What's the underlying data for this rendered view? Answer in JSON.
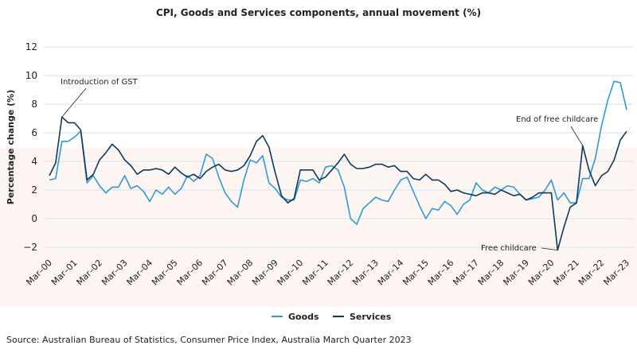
{
  "chart_data": {
    "type": "line",
    "title": "CPI, Goods and Services components, annual movement (%)",
    "xlabel": "",
    "ylabel": "Percentage change (%)",
    "ylim": [
      -2,
      12
    ],
    "yticks": [
      "−2",
      "0",
      "2",
      "4",
      "6",
      "8",
      "10",
      "12"
    ],
    "ytick_values": [
      -2,
      0,
      2,
      4,
      6,
      8,
      10,
      12
    ],
    "xticks": [
      "Mar–00",
      "Mar–01",
      "Mar–02",
      "Mar–03",
      "Mar–04",
      "Mar–05",
      "Mar–06",
      "Mar–07",
      "Mar–08",
      "Mar–09",
      "Mar–10",
      "Mar–11",
      "Mar–12",
      "Mar–13",
      "Mar–14",
      "Mar–15",
      "Mar–16",
      "Mar–17",
      "Mar–18",
      "Mar–19",
      "Mar–20",
      "Mar–21",
      "Mar–22",
      "Mar–23"
    ],
    "x_frequency": "quarterly, Mar-00 to Mar-23",
    "grid": true,
    "legend_position": "bottom-center",
    "series": [
      {
        "name": "Goods",
        "color": "#2e9bd6",
        "values": [
          2.7,
          2.8,
          5.4,
          5.4,
          5.7,
          6.1,
          2.5,
          3.0,
          2.3,
          1.8,
          2.2,
          2.2,
          3.0,
          2.1,
          2.3,
          1.9,
          1.2,
          2.0,
          1.7,
          2.2,
          1.7,
          2.1,
          3.0,
          2.6,
          3.0,
          4.5,
          4.2,
          2.9,
          1.8,
          1.2,
          0.8,
          2.7,
          4.1,
          3.9,
          4.4,
          2.5,
          2.1,
          1.5,
          1.3,
          1.3,
          2.7,
          2.6,
          2.8,
          2.5,
          3.6,
          3.7,
          3.4,
          2.2,
          0.0,
          -0.4,
          0.7,
          1.1,
          1.5,
          1.3,
          1.2,
          2.0,
          2.7,
          2.9,
          1.9,
          0.9,
          0.0,
          0.7,
          0.6,
          1.2,
          0.9,
          0.3,
          1.0,
          1.3,
          2.5,
          2.0,
          1.8,
          2.2,
          2.0,
          2.3,
          2.2,
          1.7,
          1.3,
          1.4,
          1.5,
          2.0,
          2.7,
          1.3,
          1.8,
          1.1,
          1.1,
          2.8,
          2.8,
          4.2,
          6.5,
          8.3,
          9.6,
          9.5,
          7.6
        ]
      },
      {
        "name": "Services",
        "color": "#0d3a5c",
        "values": [
          3.0,
          3.9,
          7.1,
          6.7,
          6.7,
          6.2,
          2.7,
          3.1,
          4.1,
          4.6,
          5.2,
          4.8,
          4.1,
          3.7,
          3.1,
          3.4,
          3.4,
          3.5,
          3.4,
          3.1,
          3.6,
          3.2,
          2.9,
          3.1,
          2.8,
          3.3,
          3.6,
          3.8,
          3.4,
          3.3,
          3.4,
          3.7,
          4.4,
          5.4,
          5.8,
          5.0,
          3.2,
          1.6,
          1.1,
          1.4,
          3.4,
          3.4,
          3.4,
          2.7,
          2.9,
          3.4,
          3.9,
          4.5,
          3.8,
          3.5,
          3.5,
          3.6,
          3.8,
          3.8,
          3.6,
          3.7,
          3.3,
          3.3,
          2.8,
          2.7,
          3.1,
          2.7,
          2.7,
          2.4,
          1.9,
          2.0,
          1.8,
          1.7,
          1.6,
          1.8,
          1.8,
          1.7,
          2.0,
          1.8,
          1.6,
          1.7,
          1.3,
          1.5,
          1.8,
          1.8,
          1.8,
          -2.2,
          -0.6,
          0.8,
          1.1,
          5.1,
          3.4,
          2.3,
          3.0,
          3.3,
          4.1,
          5.5,
          6.1
        ]
      }
    ],
    "annotations": [
      {
        "text": "Introduction of GST",
        "series": "Services",
        "index": 2
      },
      {
        "text": "End of free childcare",
        "series": "Services",
        "index": 85
      },
      {
        "text": "Free childcare",
        "series": "Services",
        "index": 81
      }
    ],
    "source": "Source: Australian Bureau of Statistics, Consumer Price Index, Australia March Quarter 2023"
  }
}
